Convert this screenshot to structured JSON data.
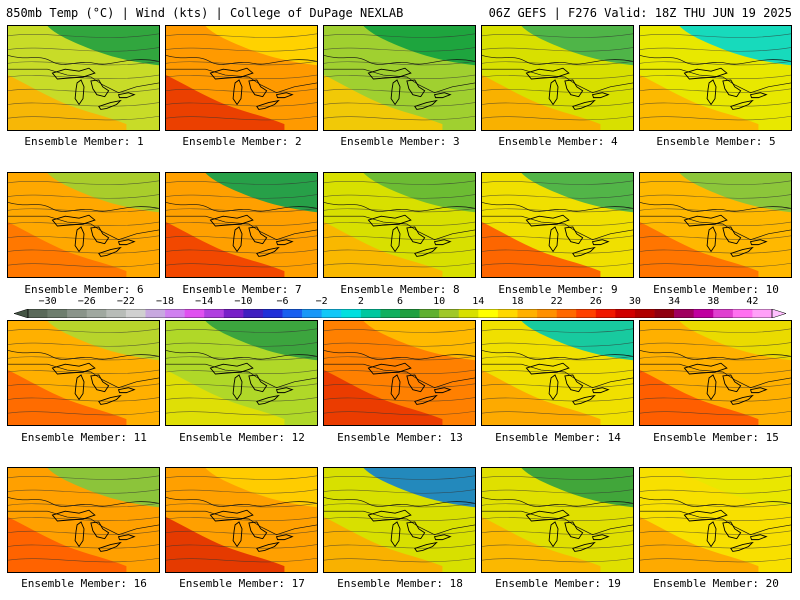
{
  "header": {
    "left_title": "850mb Temp (°C) | Wind (kts) | College of DuPage NEXLAB",
    "right_title": "06Z GEFS | F276 Valid: 18Z THU JUN 19 2025"
  },
  "members": [
    {
      "label": "Ensemble Member: 1",
      "base": "#c8dc28",
      "warm": "#ffb000",
      "cool": "#20a040"
    },
    {
      "label": "Ensemble Member: 2",
      "base": "#ff9a00",
      "warm": "#e83000",
      "cool": "#ffd800"
    },
    {
      "label": "Ensemble Member: 3",
      "base": "#a0d030",
      "warm": "#ffc800",
      "cool": "#10a040"
    },
    {
      "label": "Ensemble Member: 4",
      "base": "#d8e000",
      "warm": "#ffa800",
      "cool": "#40b050"
    },
    {
      "label": "Ensemble Member: 5",
      "base": "#e8e800",
      "warm": "#ffb000",
      "cool": "#00d8d0"
    },
    {
      "label": "Ensemble Member: 6",
      "base": "#ffa800",
      "warm": "#ff7000",
      "cool": "#a0d030"
    },
    {
      "label": "Ensemble Member: 7",
      "base": "#ffa000",
      "warm": "#f03800",
      "cool": "#10a050"
    },
    {
      "label": "Ensemble Member: 8",
      "base": "#d8e000",
      "warm": "#ffb000",
      "cool": "#60b838"
    },
    {
      "label": "Ensemble Member: 9",
      "base": "#f0e000",
      "warm": "#ff5000",
      "cool": "#40b050"
    },
    {
      "label": "Ensemble Member: 10",
      "base": "#ffb800",
      "warm": "#ff6800",
      "cool": "#80c840"
    },
    {
      "label": "Ensemble Member: 11",
      "base": "#ffb000",
      "warm": "#ff6000",
      "cool": "#b0d830"
    },
    {
      "label": "Ensemble Member: 12",
      "base": "#b0d828",
      "warm": "#e8e000",
      "cool": "#30a040"
    },
    {
      "label": "Ensemble Member: 13",
      "base": "#ff8000",
      "warm": "#e83000",
      "cool": "#ffc000"
    },
    {
      "label": "Ensemble Member: 14",
      "base": "#f0e000",
      "warm": "#ffa000",
      "cool": "#00c8b0"
    },
    {
      "label": "Ensemble Member: 15",
      "base": "#ffb000",
      "warm": "#ff5000",
      "cool": "#e8e000"
    },
    {
      "label": "Ensemble Member: 16",
      "base": "#ffa000",
      "warm": "#ff5800",
      "cool": "#80c840"
    },
    {
      "label": "Ensemble Member: 17",
      "base": "#ffa000",
      "warm": "#e02800",
      "cool": "#ffd000"
    },
    {
      "label": "Ensemble Member: 18",
      "base": "#d8e000",
      "warm": "#ffa800",
      "cool": "#1080d0"
    },
    {
      "label": "Ensemble Member: 19",
      "base": "#e0e000",
      "warm": "#ffb000",
      "cool": "#30a040"
    },
    {
      "label": "Ensemble Member: 20",
      "base": "#f8e000",
      "warm": "#ffa000",
      "cool": "#e8e800"
    }
  ],
  "colorbar": {
    "tick_labels": [
      "−30",
      "−26",
      "−22",
      "−18",
      "−14",
      "−10",
      "−6",
      "−2",
      "2",
      "6",
      "10",
      "14",
      "18",
      "22",
      "26",
      "30",
      "34",
      "38",
      "42"
    ],
    "colors": [
      "#5a6a5a",
      "#6e7e6e",
      "#8a948a",
      "#a0a8a0",
      "#b8bcb8",
      "#d0d0d0",
      "#c8a8e0",
      "#d080f0",
      "#e050f0",
      "#b040e0",
      "#7820c8",
      "#4020c0",
      "#2030d8",
      "#1860f0",
      "#1898f8",
      "#10c8f8",
      "#00e0e0",
      "#00c8a0",
      "#10b060",
      "#20a040",
      "#60b030",
      "#a0c828",
      "#d8e000",
      "#ffff00",
      "#ffd800",
      "#ffb000",
      "#ff9000",
      "#ff6800",
      "#ff4000",
      "#f01800",
      "#d00000",
      "#b00000",
      "#900010",
      "#a00060",
      "#c000a0",
      "#e040d0",
      "#ff70f0",
      "#ffa0f8"
    ]
  }
}
